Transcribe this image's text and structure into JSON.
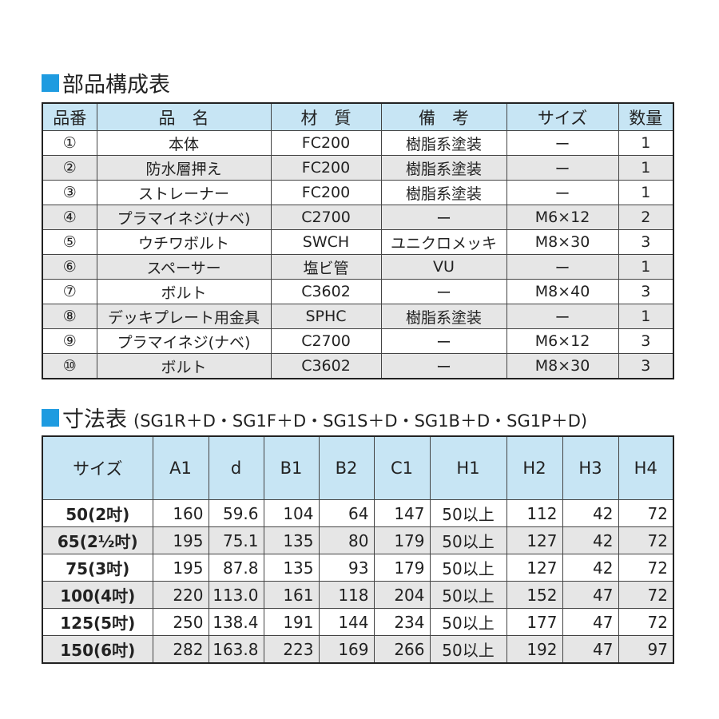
{
  "parts": {
    "title": "部品構成表",
    "headers": [
      "品番",
      "品　名",
      "材　質",
      "備　考",
      "サイズ",
      "数量"
    ],
    "rows": [
      [
        "①",
        "本体",
        "FC200",
        "樹脂系塗装",
        "ー",
        "1"
      ],
      [
        "②",
        "防水層押え",
        "FC200",
        "樹脂系塗装",
        "ー",
        "1"
      ],
      [
        "③",
        "ストレーナー",
        "FC200",
        "樹脂系塗装",
        "ー",
        "1"
      ],
      [
        "④",
        "プラマイネジ(ナベ)",
        "C2700",
        "ー",
        "M6×12",
        "2"
      ],
      [
        "⑤",
        "ウチワボルト",
        "SWCH",
        "ユニクロメッキ",
        "M8×30",
        "3"
      ],
      [
        "⑥",
        "スペーサー",
        "塩ビ管",
        "VU",
        "ー",
        "1"
      ],
      [
        "⑦",
        "ボルト",
        "C3602",
        "ー",
        "M8×40",
        "3"
      ],
      [
        "⑧",
        "デッキプレート用金具",
        "SPHC",
        "樹脂系塗装",
        "ー",
        "1"
      ],
      [
        "⑨",
        "プラマイネジ(ナベ)",
        "C2700",
        "ー",
        "M6×12",
        "3"
      ],
      [
        "⑩",
        "ボルト",
        "C3602",
        "ー",
        "M8×30",
        "3"
      ]
    ]
  },
  "dimensions": {
    "title": "寸法表",
    "subtitle": "(SG1R＋D・SG1F＋D・SG1S＋D・SG1B＋D・SG1P＋D)",
    "headers": [
      "サイズ",
      "A1",
      "d",
      "B1",
      "B2",
      "C1",
      "H1",
      "H2",
      "H3",
      "H4"
    ],
    "rows": [
      [
        "50(2吋)",
        "160",
        "59.6",
        "104",
        "64",
        "147",
        "50以上",
        "112",
        "42",
        "72"
      ],
      [
        "65(2½吋)",
        "195",
        "75.1",
        "135",
        "80",
        "179",
        "50以上",
        "127",
        "42",
        "72"
      ],
      [
        "75(3吋)",
        "195",
        "87.8",
        "135",
        "93",
        "179",
        "50以上",
        "127",
        "42",
        "72"
      ],
      [
        "100(4吋)",
        "220",
        "113.0",
        "161",
        "118",
        "204",
        "50以上",
        "152",
        "47",
        "72"
      ],
      [
        "125(5吋)",
        "250",
        "138.4",
        "191",
        "144",
        "234",
        "50以上",
        "177",
        "47",
        "72"
      ],
      [
        "150(6吋)",
        "282",
        "163.8",
        "223",
        "169",
        "266",
        "50以上",
        "192",
        "47",
        "97"
      ]
    ]
  }
}
